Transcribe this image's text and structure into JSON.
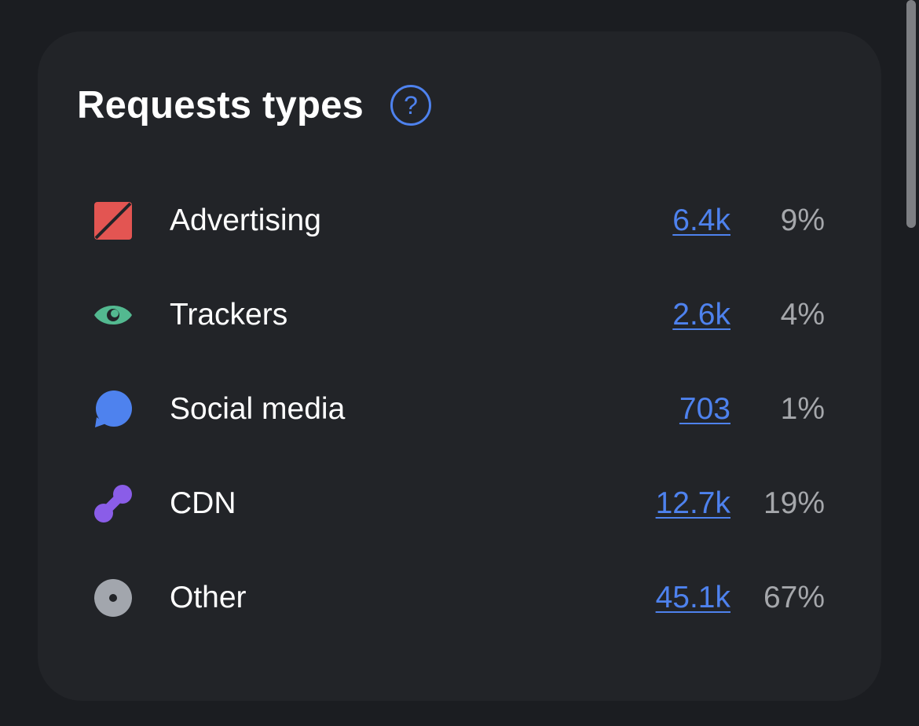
{
  "card": {
    "title": "Requests types",
    "help_glyph": "?",
    "help_icon": "question-circle-icon"
  },
  "accent_color": "#4e82ee",
  "rows": [
    {
      "label": "Advertising",
      "count": "6.4k",
      "percent": "9%",
      "icon": "advertising-icon",
      "icon_color": "#e35552"
    },
    {
      "label": "Trackers",
      "count": "2.6k",
      "percent": "4%",
      "icon": "eye-icon",
      "icon_color": "#53b990"
    },
    {
      "label": "Social media",
      "count": "703",
      "percent": "1%",
      "icon": "chat-bubble-icon",
      "icon_color": "#4e82ee"
    },
    {
      "label": "CDN",
      "count": "12.7k",
      "percent": "19%",
      "icon": "cdn-nodes-icon",
      "icon_color": "#8a5de8"
    },
    {
      "label": "Other",
      "count": "45.1k",
      "percent": "67%",
      "icon": "dot-circle-icon",
      "icon_color": "#a2a6ad"
    }
  ]
}
